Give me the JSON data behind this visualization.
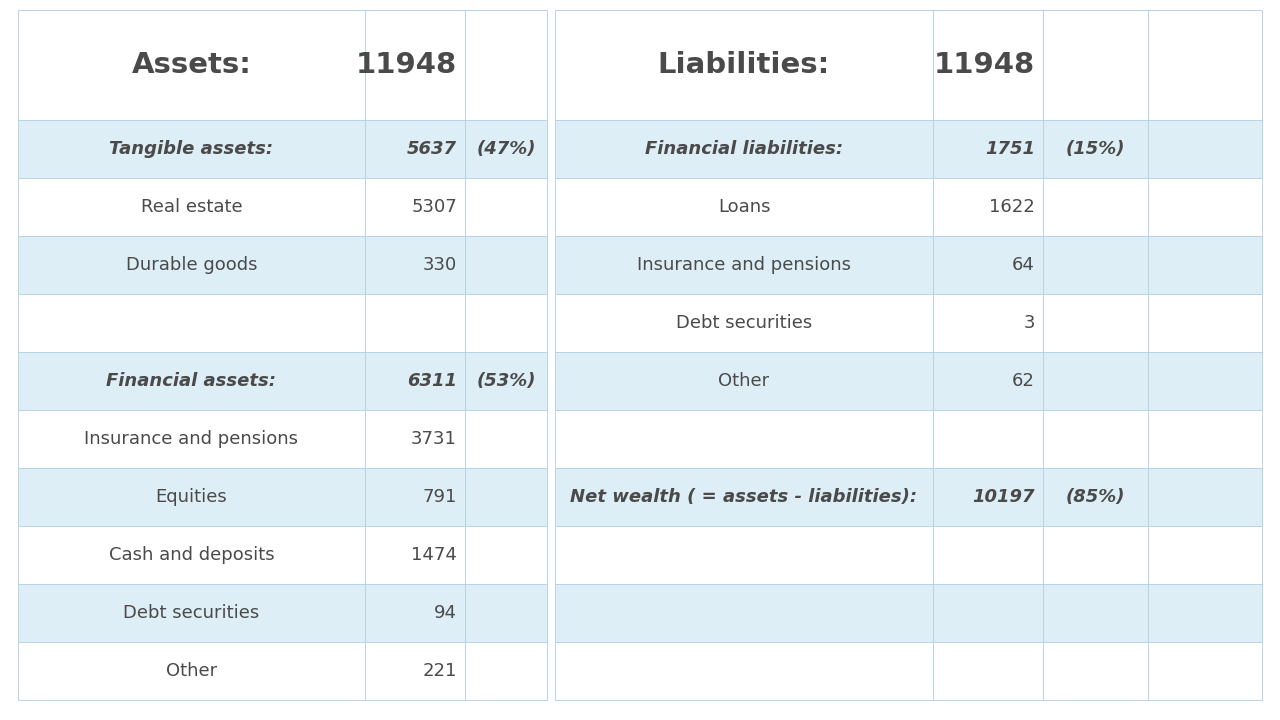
{
  "background_color": "#ffffff",
  "row_bg_light": "#ddeef6",
  "row_bg_white": "#ffffff",
  "border_color": "#b8d4e3",
  "text_color": "#4a4a4a",
  "header_row": {
    "left_label": "Assets:",
    "left_value": "11948",
    "right_label": "Liabilities:",
    "right_value": "11948"
  },
  "rows": [
    {
      "left_label": "Tangible assets:",
      "left_value": "5637",
      "left_pct": "(47%)",
      "right_label": "Financial liabilities:",
      "right_value": "1751",
      "right_pct": "(15%)",
      "bold_left": true,
      "bold_right": true,
      "bg": "light"
    },
    {
      "left_label": "Real estate",
      "left_value": "5307",
      "left_pct": "",
      "right_label": "Loans",
      "right_value": "1622",
      "right_pct": "",
      "bold_left": false,
      "bold_right": false,
      "bg": "white"
    },
    {
      "left_label": "Durable goods",
      "left_value": "330",
      "left_pct": "",
      "right_label": "Insurance and pensions",
      "right_value": "64",
      "right_pct": "",
      "bold_left": false,
      "bold_right": false,
      "bg": "light"
    },
    {
      "left_label": "",
      "left_value": "",
      "left_pct": "",
      "right_label": "Debt securities",
      "right_value": "3",
      "right_pct": "",
      "bold_left": false,
      "bold_right": false,
      "bg": "white"
    },
    {
      "left_label": "Financial assets:",
      "left_value": "6311",
      "left_pct": "(53%)",
      "right_label": "Other",
      "right_value": "62",
      "right_pct": "",
      "bold_left": true,
      "bold_right": false,
      "bg": "light"
    },
    {
      "left_label": "Insurance and pensions",
      "left_value": "3731",
      "left_pct": "",
      "right_label": "",
      "right_value": "",
      "right_pct": "",
      "bold_left": false,
      "bold_right": false,
      "bg": "white"
    },
    {
      "left_label": "Equities",
      "left_value": "791",
      "left_pct": "",
      "right_label": "Net wealth ( = assets - liabilities):",
      "right_value": "10197",
      "right_pct": "(85%)",
      "bold_left": false,
      "bold_right": true,
      "bg": "light"
    },
    {
      "left_label": "Cash and deposits",
      "left_value": "1474",
      "left_pct": "",
      "right_label": "",
      "right_value": "",
      "right_pct": "",
      "bold_left": false,
      "bold_right": false,
      "bg": "white"
    },
    {
      "left_label": "Debt securities",
      "left_value": "94",
      "left_pct": "",
      "right_label": "",
      "right_value": "",
      "right_pct": "",
      "bold_left": false,
      "bold_right": false,
      "bg": "light"
    },
    {
      "left_label": "Other",
      "left_value": "221",
      "left_pct": "",
      "right_label": "",
      "right_value": "",
      "right_pct": "",
      "bold_left": false,
      "bold_right": false,
      "bg": "white"
    }
  ],
  "font_size_header": 21,
  "font_size_body": 13,
  "font_size_pct": 13
}
